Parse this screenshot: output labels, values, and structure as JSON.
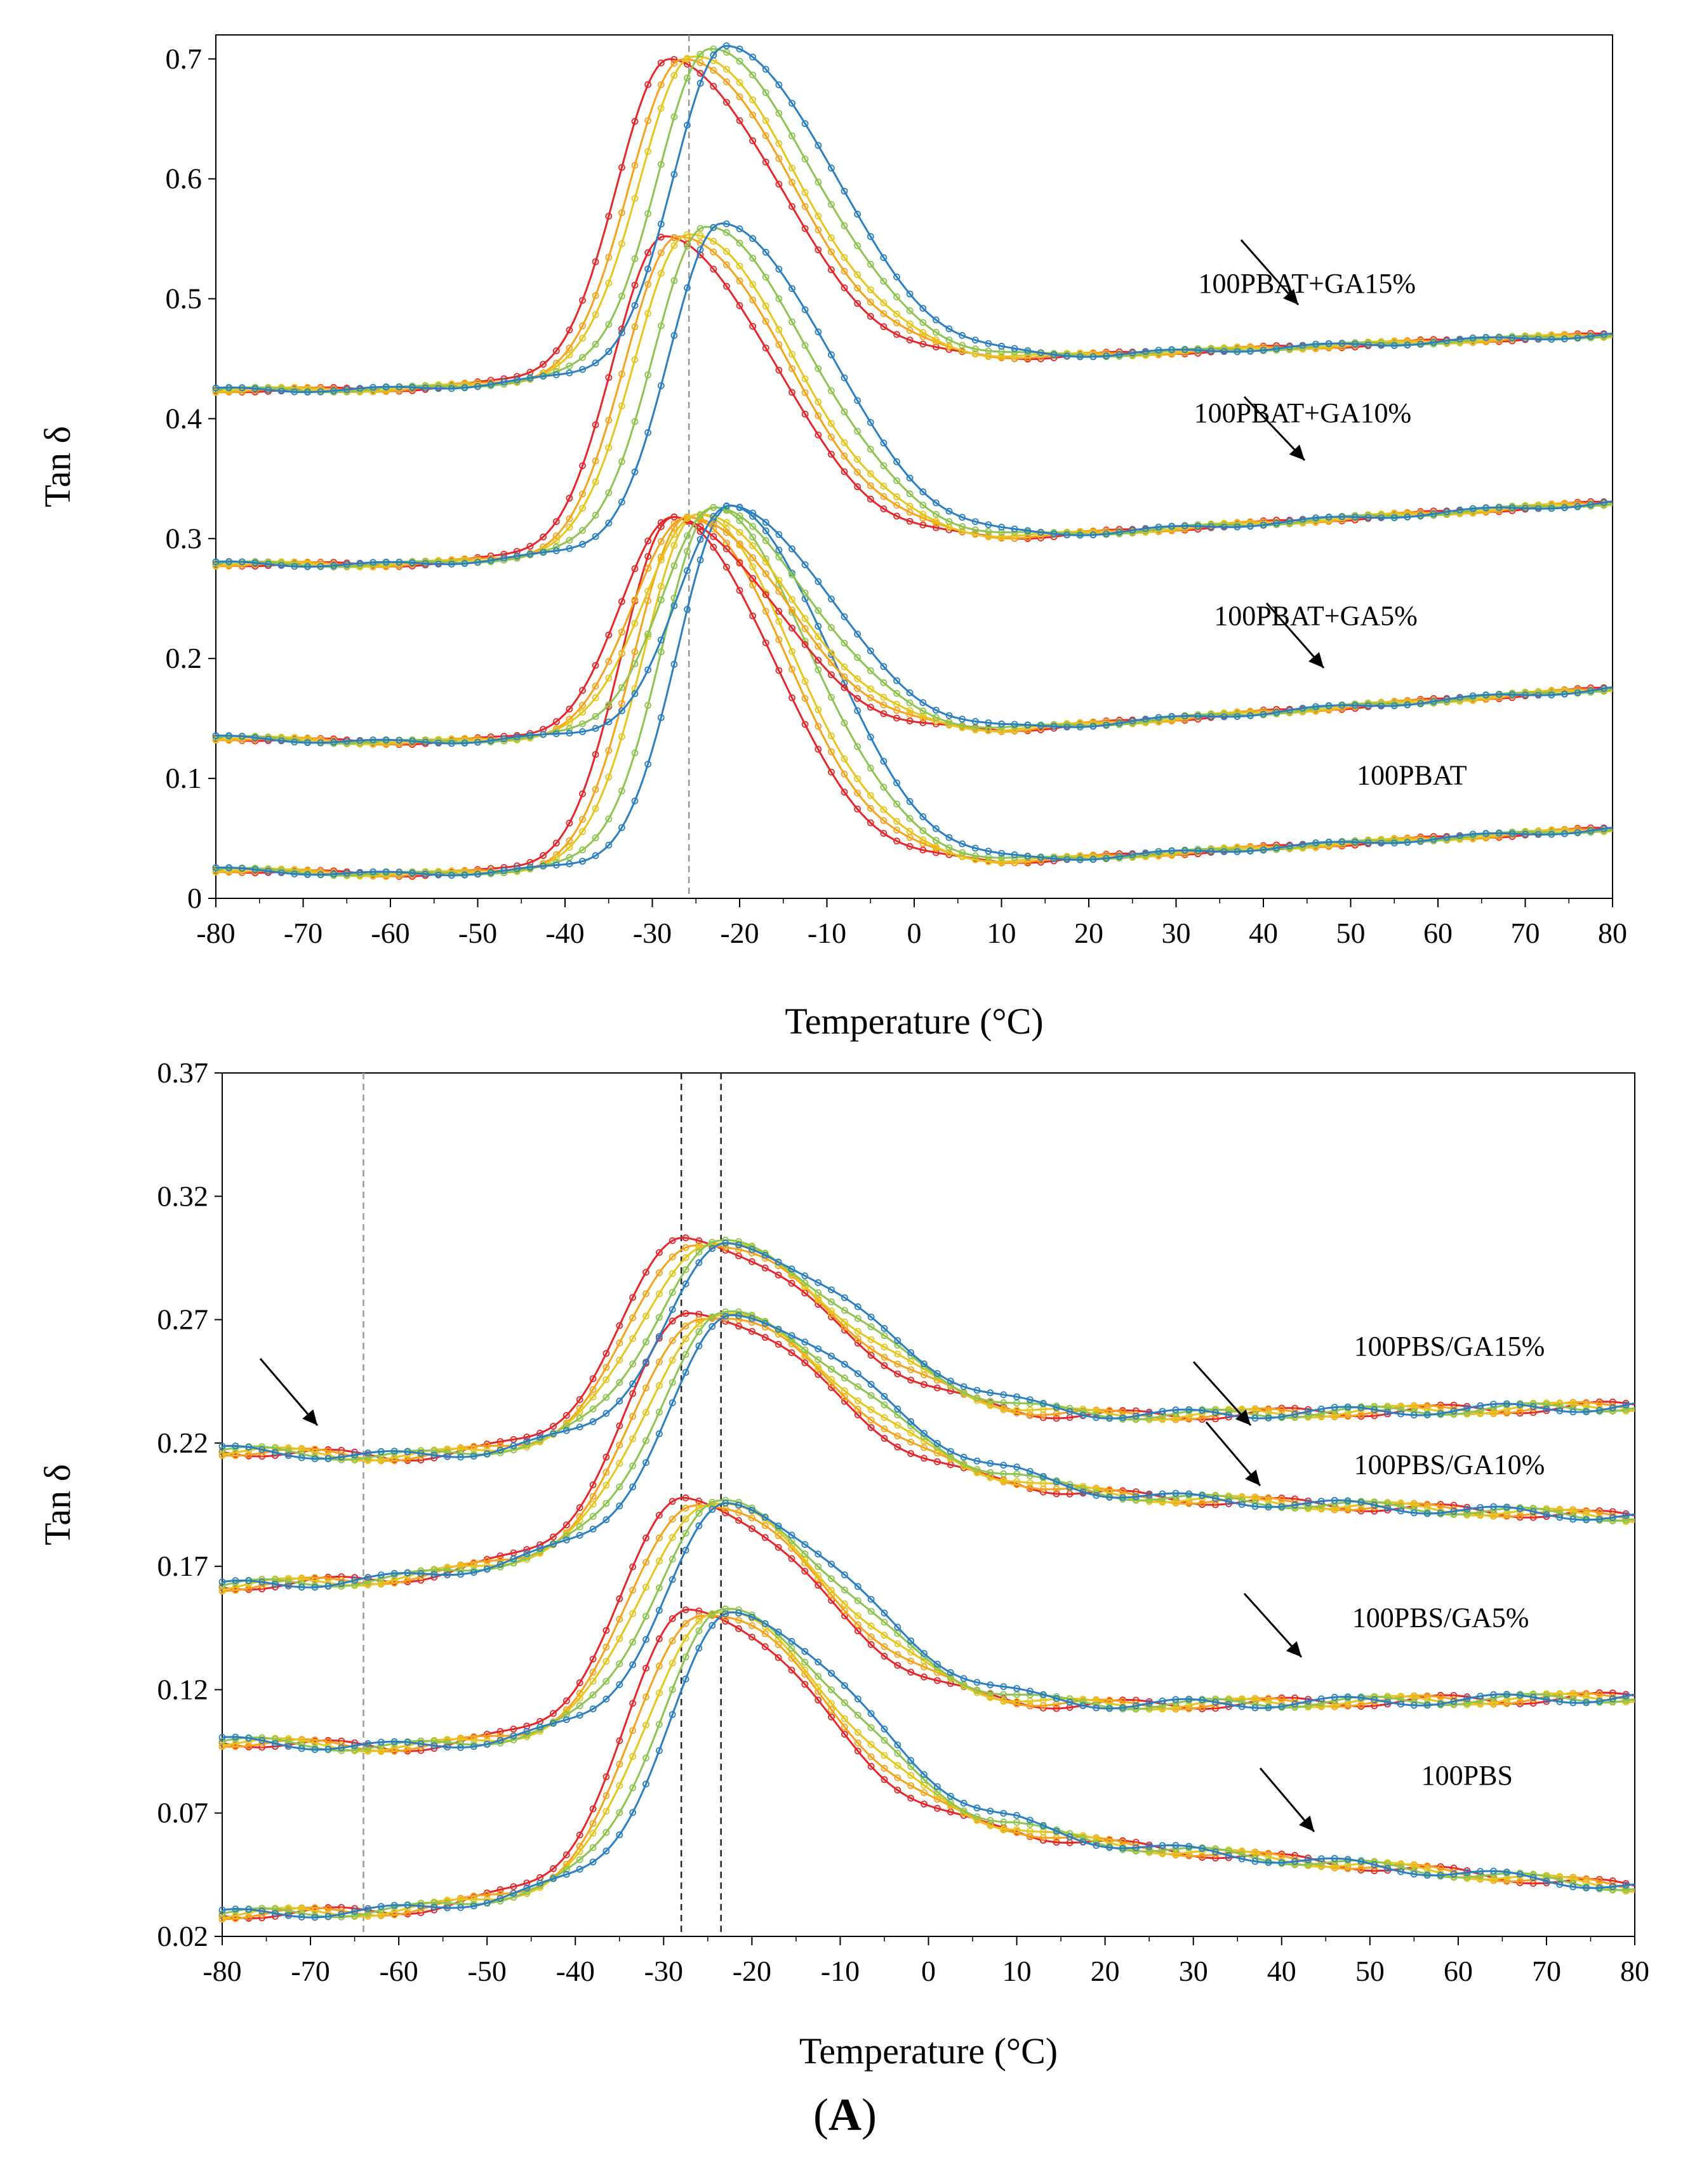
{
  "colors": {
    "red": "#e8262a",
    "orange": "#f7a21b",
    "yellow": "#e6c51d",
    "green": "#8dc44f",
    "blue": "#2a7fc3",
    "grey": "#999999",
    "black": "#222222"
  },
  "caption": {
    "open": "(",
    "letter": "A",
    "close": ")"
  },
  "chart_data": [
    {
      "type": "line",
      "id": "pbat",
      "xlabel": "Temperature (°C)",
      "ylabel": "Tan δ",
      "xlim": [
        -80,
        80
      ],
      "ylim": [
        0,
        0.72
      ],
      "xticks": [
        -80,
        -70,
        -60,
        -50,
        -40,
        -30,
        -20,
        -10,
        0,
        10,
        20,
        30,
        40,
        50,
        60,
        70,
        80
      ],
      "yticks": [
        0,
        0.1,
        0.2,
        0.3,
        0.4,
        0.5,
        0.6,
        0.7
      ],
      "ytick_labels": [
        "0",
        "0.1",
        "0.2",
        "0.3",
        "0.4",
        "0.5",
        "0.6",
        "0.7"
      ],
      "reference_lines_x": [
        -25.8
      ],
      "groups": [
        {
          "label": "100PBAT",
          "offset": 0,
          "peak_x": -27.5,
          "peak_height": 0.29,
          "base_left": 0.025,
          "base_mid": 0.03,
          "base_right": 0.058,
          "width_left": 6,
          "width_right": 11
        },
        {
          "label": "100PBAT+GA5%",
          "offset": 0.12,
          "peak_x": -27.5,
          "peak_height": 0.18,
          "base_left": 0.135,
          "base_mid": 0.14,
          "base_right": 0.175,
          "width_left": 6,
          "width_right": 11
        },
        {
          "label": "100PBAT+GA10%",
          "offset": 0.27,
          "peak_x": -28.5,
          "peak_height": 0.26,
          "base_left": 0.28,
          "base_mid": 0.3,
          "base_right": 0.33,
          "width_left": 6,
          "width_right": 12
        },
        {
          "label": "100PBAT+GA15%",
          "offset": 0.42,
          "peak_x": -28.0,
          "peak_height": 0.26,
          "base_left": 0.425,
          "base_mid": 0.45,
          "base_right": 0.47,
          "width_left": 6,
          "width_right": 12
        }
      ],
      "series_shifts": [
        {
          "name": "red",
          "shift": 0,
          "gain": 0
        },
        {
          "name": "orange",
          "shift": 1.5,
          "gain": 0.002
        },
        {
          "name": "yellow",
          "shift": 2.5,
          "gain": 0.003
        },
        {
          "name": "green",
          "shift": 4.5,
          "gain": 0.006
        },
        {
          "name": "blue",
          "shift": 6.5,
          "gain": 0.009
        }
      ],
      "annotations": [
        {
          "text": "100PBAT+GA15%",
          "x": 45,
          "y": 0.505
        },
        {
          "text": "100PBAT+GA10%",
          "x": 44.5,
          "y": 0.397
        },
        {
          "text": "100PBAT+GA5%",
          "x": 46,
          "y": 0.228
        },
        {
          "text": "100PBAT",
          "x": 57,
          "y": 0.095
        }
      ]
    },
    {
      "type": "line",
      "id": "pbs",
      "xlabel": "Temperature (°C)",
      "ylabel": "Tan δ",
      "xlim": [
        -80,
        80
      ],
      "ylim": [
        0.02,
        0.37
      ],
      "xticks": [
        -80,
        -70,
        -60,
        -50,
        -40,
        -30,
        -20,
        -10,
        0,
        10,
        20,
        30,
        40,
        50,
        60,
        70,
        80
      ],
      "yticks": [
        0.02,
        0.07,
        0.12,
        0.17,
        0.22,
        0.27,
        0.32,
        0.37
      ],
      "ytick_labels": [
        "0.02",
        "0.07",
        "0.12",
        "0.17",
        "0.22",
        "0.27",
        "0.32",
        "0.37"
      ],
      "reference_lines_x": [
        -64,
        -28,
        -23.5
      ],
      "groups": [
        {
          "label": "100PBS",
          "offset": 0,
          "peak_x": -27,
          "peak_height": 0.105,
          "base_left": 0.03,
          "base_mid": 0.06,
          "base_right": 0.04,
          "width_left": 7,
          "width_right": 14
        },
        {
          "label": "100PBS/GA5%",
          "offset": 0.07,
          "peak_x": -27.5,
          "peak_height": 0.09,
          "base_left": 0.1,
          "base_mid": 0.113,
          "base_right": 0.117,
          "width_left": 7,
          "width_right": 14
        },
        {
          "label": "100PBS/GA10%",
          "offset": 0.13,
          "peak_x": -27,
          "peak_height": 0.088,
          "base_left": 0.163,
          "base_mid": 0.2,
          "base_right": 0.19,
          "width_left": 7,
          "width_right": 15
        },
        {
          "label": "100PBS/GA15%",
          "offset": 0.19,
          "peak_x": -27.5,
          "peak_height": 0.078,
          "base_left": 0.218,
          "base_mid": 0.23,
          "base_right": 0.235,
          "width_left": 7,
          "width_right": 15
        }
      ],
      "series_shifts": [
        {
          "name": "red",
          "shift": 0,
          "gain": 0
        },
        {
          "name": "orange",
          "shift": 1.2,
          "gain": -0.001
        },
        {
          "name": "yellow",
          "shift": 2.2,
          "gain": -0.002
        },
        {
          "name": "green",
          "shift": 3.5,
          "gain": -0.003
        },
        {
          "name": "blue",
          "shift": 4.8,
          "gain": -0.004
        }
      ],
      "annotations": [
        {
          "text": "100PBS/GA15%",
          "x": 59,
          "y": 0.2555
        },
        {
          "text": "100PBS/GA10%",
          "x": 59,
          "y": 0.2075
        },
        {
          "text": "100PBS/GA5%",
          "x": 58,
          "y": 0.1455
        },
        {
          "text": "100PBS",
          "x": 61,
          "y": 0.0815
        }
      ]
    }
  ]
}
